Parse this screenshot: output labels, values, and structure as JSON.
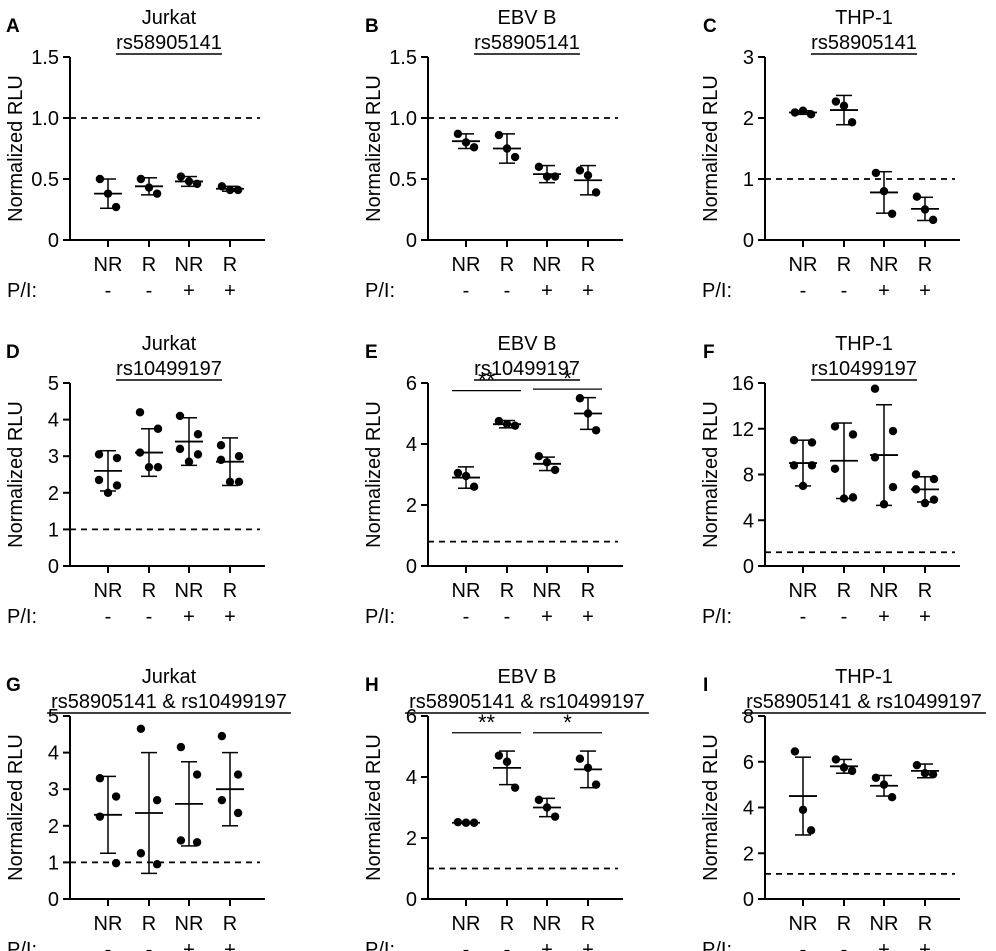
{
  "figure": {
    "stim_label": "P/I:",
    "stim_signs": [
      "-",
      "-",
      "+",
      "+"
    ]
  },
  "chart_data": [
    {
      "type": "scatter",
      "panel": "A",
      "title": "Jurkat",
      "subtitle": "rs58905141",
      "ylabel": "Normalized RLU",
      "categories": [
        "NR",
        "R",
        "NR",
        "R"
      ],
      "ylim": [
        0,
        1.5
      ],
      "yticks": [
        0,
        0.5,
        1.0,
        1.5
      ],
      "ytick_labels": [
        "0",
        "0.5",
        "1.0",
        "1.5"
      ],
      "reference_line": 1.0,
      "series": [
        {
          "points": [
            0.5,
            0.38,
            0.27
          ],
          "mean": 0.38,
          "sd": 0.12
        },
        {
          "points": [
            0.5,
            0.43,
            0.38
          ],
          "mean": 0.44,
          "sd": 0.07
        },
        {
          "points": [
            0.52,
            0.48,
            0.46
          ],
          "mean": 0.48,
          "sd": 0.04
        },
        {
          "points": [
            0.44,
            0.41,
            0.41
          ],
          "mean": 0.42,
          "sd": 0.02
        }
      ],
      "significance": []
    },
    {
      "type": "scatter",
      "panel": "B",
      "title": "EBV B",
      "subtitle": "rs58905141",
      "ylabel": "Normalized RLU",
      "categories": [
        "NR",
        "R",
        "NR",
        "R"
      ],
      "ylim": [
        0,
        1.5
      ],
      "yticks": [
        0,
        0.5,
        1.0,
        1.5
      ],
      "ytick_labels": [
        "0",
        "0.5",
        "1.0",
        "1.5"
      ],
      "reference_line": 1.0,
      "series": [
        {
          "points": [
            0.87,
            0.8,
            0.76
          ],
          "mean": 0.81,
          "sd": 0.06
        },
        {
          "points": [
            0.86,
            0.75,
            0.68
          ],
          "mean": 0.75,
          "sd": 0.12
        },
        {
          "points": [
            0.6,
            0.52,
            0.52
          ],
          "mean": 0.54,
          "sd": 0.07
        },
        {
          "points": [
            0.57,
            0.53,
            0.39
          ],
          "mean": 0.49,
          "sd": 0.12
        }
      ],
      "significance": []
    },
    {
      "type": "scatter",
      "panel": "C",
      "title": "THP-1",
      "subtitle": "rs58905141",
      "ylabel": "Normalized RLU",
      "categories": [
        "NR",
        "R",
        "NR",
        "R"
      ],
      "ylim": [
        0,
        3
      ],
      "yticks": [
        0,
        1,
        2,
        3
      ],
      "ytick_labels": [
        "0",
        "1",
        "2",
        "3"
      ],
      "reference_line": 1.0,
      "series": [
        {
          "points": [
            2.09,
            2.12,
            2.06
          ],
          "mean": 2.09,
          "sd": 0.03
        },
        {
          "points": [
            2.27,
            2.2,
            1.93
          ],
          "mean": 2.13,
          "sd": 0.24
        },
        {
          "points": [
            1.1,
            0.8,
            0.43
          ],
          "mean": 0.78,
          "sd": 0.34
        },
        {
          "points": [
            0.71,
            0.5,
            0.33
          ],
          "mean": 0.51,
          "sd": 0.19
        }
      ],
      "significance": []
    },
    {
      "type": "scatter",
      "panel": "D",
      "title": "Jurkat",
      "subtitle": "rs10499197",
      "ylabel": "Normalized RLU",
      "categories": [
        "NR",
        "R",
        "NR",
        "R"
      ],
      "ylim": [
        0,
        5
      ],
      "yticks": [
        0,
        1,
        2,
        3,
        4,
        5
      ],
      "ytick_labels": [
        "0",
        "1",
        "2",
        "3",
        "4",
        "5"
      ],
      "reference_line": 1.0,
      "series": [
        {
          "points": [
            3.05,
            2.95,
            2.35,
            2.2,
            2.0
          ],
          "mean": 2.6,
          "sd": 0.55
        },
        {
          "points": [
            4.2,
            3.75,
            3.1,
            2.7,
            2.7
          ],
          "mean": 3.1,
          "sd": 0.65
        },
        {
          "points": [
            4.1,
            3.6,
            3.2,
            3.05,
            2.85
          ],
          "mean": 3.4,
          "sd": 0.65
        },
        {
          "points": [
            3.3,
            3.0,
            2.9,
            2.3,
            2.3
          ],
          "mean": 2.85,
          "sd": 0.65
        }
      ],
      "significance": []
    },
    {
      "type": "scatter",
      "panel": "E",
      "title": "EBV B",
      "subtitle": "rs10499197",
      "ylabel": "Normalized RLU",
      "categories": [
        "NR",
        "R",
        "NR",
        "R"
      ],
      "ylim": [
        0,
        6
      ],
      "yticks": [
        0,
        2,
        4,
        6
      ],
      "ytick_labels": [
        "0",
        "2",
        "4",
        "6"
      ],
      "reference_line": 0.8,
      "series": [
        {
          "points": [
            3.05,
            2.95,
            2.6
          ],
          "mean": 2.9,
          "sd": 0.35
        },
        {
          "points": [
            4.75,
            4.65,
            4.6
          ],
          "mean": 4.65,
          "sd": 0.12
        },
        {
          "points": [
            3.6,
            3.4,
            3.15
          ],
          "mean": 3.35,
          "sd": 0.22
        },
        {
          "points": [
            5.5,
            5.0,
            4.45
          ],
          "mean": 5.0,
          "sd": 0.52
        }
      ],
      "significance": [
        {
          "label": "**",
          "from": 0,
          "to": 1,
          "y": 5.75
        },
        {
          "label": "*",
          "from": 2,
          "to": 3,
          "y": 5.8
        }
      ]
    },
    {
      "type": "scatter",
      "panel": "F",
      "title": "THP-1",
      "subtitle": "rs10499197",
      "ylabel": "Normalized RLU",
      "categories": [
        "NR",
        "R",
        "NR",
        "R"
      ],
      "ylim": [
        0,
        16
      ],
      "yticks": [
        0,
        4,
        8,
        12,
        16
      ],
      "ytick_labels": [
        "0",
        "4",
        "8",
        "12",
        "16"
      ],
      "reference_line": 1.2,
      "series": [
        {
          "points": [
            11.0,
            10.8,
            8.8,
            8.8,
            7.0
          ],
          "mean": 9.0,
          "sd": 2.0
        },
        {
          "points": [
            12.2,
            11.5,
            8.5,
            6.0,
            5.9
          ],
          "mean": 9.2,
          "sd": 3.3
        },
        {
          "points": [
            15.5,
            11.8,
            9.5,
            6.9,
            5.4
          ],
          "mean": 9.7,
          "sd": 4.4
        },
        {
          "points": [
            8.0,
            7.6,
            6.7,
            5.8,
            5.5
          ],
          "mean": 6.7,
          "sd": 1.1
        }
      ],
      "significance": []
    },
    {
      "type": "scatter",
      "panel": "G",
      "title": "Jurkat",
      "subtitle": "rs58905141 & rs10499197",
      "ylabel": "Normalized RLU",
      "categories": [
        "NR",
        "R",
        "NR",
        "R"
      ],
      "ylim": [
        0,
        5
      ],
      "yticks": [
        0,
        1,
        2,
        3,
        4,
        5
      ],
      "ytick_labels": [
        "0",
        "1",
        "2",
        "3",
        "4",
        "5"
      ],
      "reference_line": 1.0,
      "series": [
        {
          "points": [
            3.3,
            2.8,
            2.25,
            0.98
          ],
          "mean": 2.3,
          "sd": 1.05
        },
        {
          "points": [
            4.65,
            2.7,
            1.25,
            0.95
          ],
          "mean": 2.35,
          "sd": 1.65
        },
        {
          "points": [
            4.15,
            3.4,
            1.6,
            1.55
          ],
          "mean": 2.6,
          "sd": 1.15
        },
        {
          "points": [
            4.45,
            3.4,
            2.7,
            2.35
          ],
          "mean": 3.0,
          "sd": 1.0
        }
      ],
      "significance": []
    },
    {
      "type": "scatter",
      "panel": "H",
      "title": "EBV B",
      "subtitle": "rs58905141 & rs10499197",
      "ylabel": "Normalized RLU",
      "categories": [
        "NR",
        "R",
        "NR",
        "R"
      ],
      "ylim": [
        0,
        6
      ],
      "yticks": [
        0,
        2,
        4,
        6
      ],
      "ytick_labels": [
        "0",
        "2",
        "4",
        "6"
      ],
      "reference_line": 1.0,
      "series": [
        {
          "points": [
            2.52,
            2.5,
            2.5
          ],
          "mean": 2.5,
          "sd": 0.02
        },
        {
          "points": [
            4.7,
            4.5,
            3.65
          ],
          "mean": 4.3,
          "sd": 0.55
        },
        {
          "points": [
            3.25,
            3.0,
            2.7
          ],
          "mean": 3.0,
          "sd": 0.3
        },
        {
          "points": [
            4.6,
            4.3,
            3.75
          ],
          "mean": 4.25,
          "sd": 0.6
        }
      ],
      "significance": [
        {
          "label": "**",
          "from": 0,
          "to": 1,
          "y": 5.45
        },
        {
          "label": "*",
          "from": 2,
          "to": 3,
          "y": 5.45
        }
      ]
    },
    {
      "type": "scatter",
      "panel": "I",
      "title": "THP-1",
      "subtitle": "rs58905141 & rs10499197",
      "ylabel": "Normalized RLU",
      "categories": [
        "NR",
        "R",
        "NR",
        "R"
      ],
      "ylim": [
        0,
        8
      ],
      "yticks": [
        0,
        2,
        4,
        6,
        8
      ],
      "ytick_labels": [
        "0",
        "2",
        "4",
        "6",
        "8"
      ],
      "reference_line": 1.1,
      "series": [
        {
          "points": [
            6.45,
            3.9,
            3.0
          ],
          "mean": 4.5,
          "sd": 1.7
        },
        {
          "points": [
            6.1,
            5.75,
            5.6
          ],
          "mean": 5.8,
          "sd": 0.3
        },
        {
          "points": [
            5.3,
            5.0,
            4.45
          ],
          "mean": 4.95,
          "sd": 0.45
        },
        {
          "points": [
            5.85,
            5.5,
            5.45
          ],
          "mean": 5.6,
          "sd": 0.3
        }
      ],
      "significance": []
    }
  ]
}
